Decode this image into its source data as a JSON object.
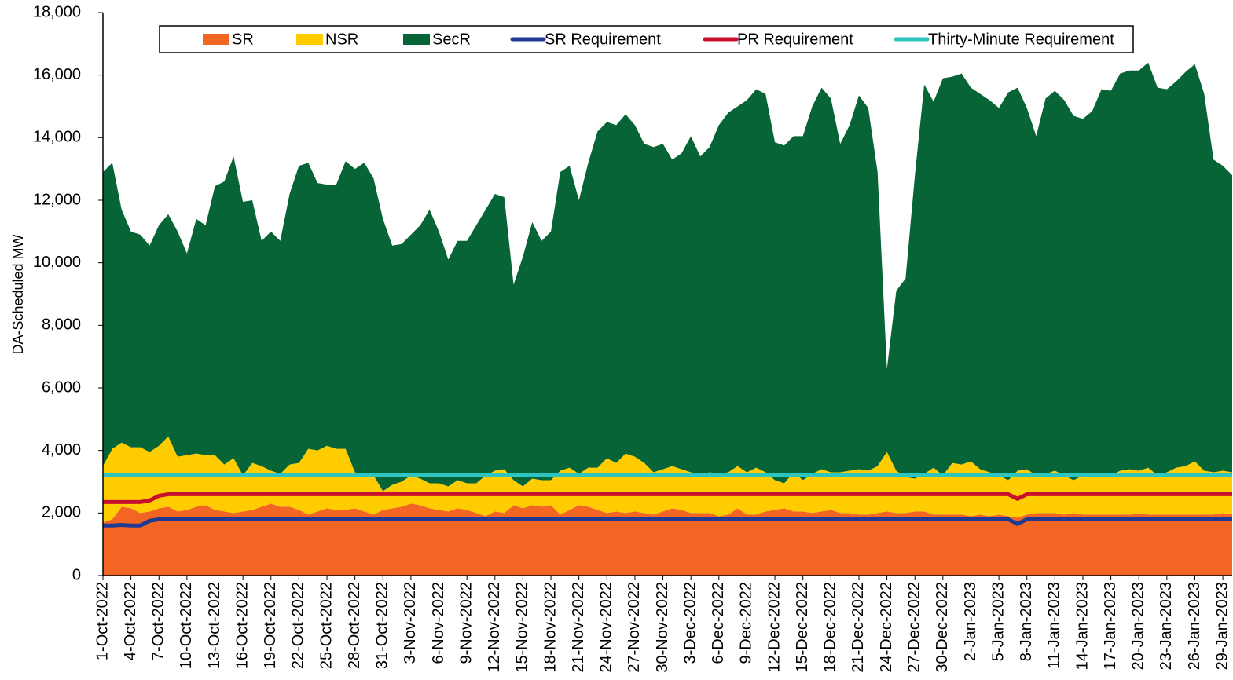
{
  "chart_data": {
    "type": "stacked-area",
    "y_label": "DA-Scheduled MW",
    "categories": [
      "1-Oct-2022",
      null,
      null,
      "4-Oct-2022",
      null,
      null,
      "7-Oct-2022",
      null,
      null,
      "10-Oct-2022",
      null,
      null,
      "13-Oct-2022",
      null,
      null,
      "16-Oct-2022",
      null,
      null,
      "19-Oct-2022",
      null,
      null,
      "22-Oct-2022",
      null,
      null,
      "25-Oct-2022",
      null,
      null,
      "28-Oct-2022",
      null,
      null,
      "31-Oct-2022",
      null,
      null,
      "3-Nov-2022",
      null,
      null,
      "6-Nov-2022",
      null,
      null,
      "9-Nov-2022",
      null,
      null,
      "12-Nov-2022",
      null,
      null,
      "15-Nov-2022",
      null,
      null,
      "18-Nov-2022",
      null,
      null,
      "21-Nov-2022",
      null,
      null,
      "24-Nov-2022",
      null,
      null,
      "27-Nov-2022",
      null,
      null,
      "30-Nov-2022",
      null,
      null,
      "3-Dec-2022",
      null,
      null,
      "6-Dec-2022",
      null,
      null,
      "9-Dec-2022",
      null,
      null,
      "12-Dec-2022",
      null,
      null,
      "15-Dec-2022",
      null,
      null,
      "18-Dec-2022",
      null,
      null,
      "21-Dec-2022",
      null,
      null,
      "24-Dec-2022",
      null,
      null,
      "27-Dec-2022",
      null,
      null,
      "30-Dec-2022",
      null,
      null,
      "2-Jan-2023",
      null,
      null,
      "5-Jan-2023",
      null,
      null,
      "8-Jan-2023",
      null,
      null,
      "11-Jan-2023",
      null,
      null,
      "14-Jan-2023",
      null,
      null,
      "17-Jan-2023",
      null,
      null,
      "20-Jan-2023",
      null,
      null,
      "23-Jan-2023",
      null,
      null,
      "26-Jan-2023",
      null,
      null,
      "29-Jan-2023",
      null
    ],
    "series": [
      {
        "name": "SR",
        "color": "#f26522",
        "values": [
          1700,
          1800,
          2200,
          2150,
          2000,
          2050,
          2150,
          2200,
          2050,
          2100,
          2200,
          2250,
          2100,
          2050,
          2000,
          2050,
          2100,
          2200,
          2300,
          2200,
          2200,
          2100,
          1950,
          2050,
          2150,
          2100,
          2100,
          2150,
          2050,
          1950,
          2100,
          2150,
          2200,
          2300,
          2250,
          2150,
          2100,
          2050,
          2150,
          2100,
          2000,
          1900,
          2050,
          2000,
          2250,
          2150,
          2250,
          2200,
          2250,
          1950,
          2100,
          2250,
          2200,
          2100,
          2000,
          2050,
          2000,
          2050,
          2000,
          1950,
          2050,
          2150,
          2100,
          2000,
          2000,
          2000,
          1900,
          1950,
          2150,
          1950,
          1950,
          2050,
          2100,
          2150,
          2050,
          2050,
          2000,
          2050,
          2100,
          2000,
          2000,
          1950,
          1950,
          2000,
          2050,
          2000,
          2000,
          2050,
          2050,
          1950,
          1950,
          1950,
          1950,
          1900,
          1950,
          1900,
          1950,
          1900,
          1850,
          1950,
          2000,
          2000,
          2000,
          1950,
          2000,
          1950,
          1950,
          1950,
          1950,
          1950,
          1950,
          2000,
          1950,
          1950,
          1950,
          1950,
          1950,
          1950,
          1950,
          1950,
          2000,
          1950
        ]
      },
      {
        "name": "NSR",
        "color": "#ffcc00",
        "values": [
          1800,
          2250,
          2050,
          1950,
          2100,
          1900,
          2000,
          2250,
          1750,
          1750,
          1700,
          1600,
          1750,
          1500,
          1750,
          1150,
          1500,
          1300,
          1050,
          1050,
          1350,
          1500,
          2100,
          1950,
          2000,
          1950,
          1950,
          1150,
          1150,
          1250,
          600,
          750,
          800,
          900,
          850,
          800,
          850,
          800,
          900,
          850,
          950,
          1300,
          1300,
          1400,
          800,
          700,
          850,
          850,
          800,
          1400,
          1350,
          1000,
          1250,
          1350,
          1750,
          1550,
          1900,
          1750,
          1600,
          1350,
          1350,
          1350,
          1300,
          1300,
          1200,
          1300,
          1350,
          1350,
          1350,
          1350,
          1500,
          1250,
          950,
          800,
          1250,
          1000,
          1250,
          1350,
          1200,
          1300,
          1350,
          1450,
          1400,
          1500,
          1900,
          1350,
          1150,
          1050,
          1200,
          1500,
          1250,
          1650,
          1600,
          1750,
          1450,
          1400,
          1250,
          1150,
          1500,
          1450,
          1200,
          1250,
          1350,
          1250,
          1050,
          1250,
          1300,
          1250,
          1250,
          1400,
          1450,
          1350,
          1500,
          1250,
          1350,
          1500,
          1550,
          1700,
          1400,
          1350,
          1350,
          1350
        ]
      },
      {
        "name": "SecR",
        "color": "#076436",
        "values": [
          9400,
          9150,
          7450,
          6900,
          6800,
          6600,
          7050,
          7100,
          7200,
          6450,
          7500,
          7350,
          8600,
          9050,
          9650,
          8750,
          8400,
          7200,
          7650,
          7450,
          8650,
          9500,
          9150,
          8550,
          8350,
          8450,
          9200,
          9700,
          10000,
          9500,
          8700,
          7650,
          7600,
          7700,
          8100,
          8750,
          8050,
          7250,
          7650,
          7750,
          8250,
          8500,
          8850,
          8700,
          6250,
          7350,
          8200,
          7650,
          7950,
          9550,
          9650,
          8750,
          9750,
          10750,
          10750,
          10800,
          10850,
          10600,
          10200,
          10400,
          10400,
          9800,
          10100,
          10750,
          10200,
          10400,
          11150,
          11500,
          11500,
          11900,
          12100,
          12100,
          10800,
          10800,
          10750,
          11000,
          11750,
          12200,
          11950,
          10500,
          11050,
          11950,
          11600,
          9400,
          2650,
          5750,
          6350,
          9700,
          12450,
          11700,
          12700,
          12350,
          12500,
          11950,
          12000,
          11900,
          11750,
          12400,
          12250,
          11550,
          10850,
          12000,
          12150,
          12000,
          11650,
          11400,
          11600,
          12350,
          12300,
          12700,
          12750,
          12800,
          12950,
          12400,
          12250,
          12350,
          12600,
          12700,
          12050,
          10000,
          9750,
          9500
        ]
      }
    ],
    "lines": [
      {
        "name": "SR Requirement",
        "color": "#1f3a93",
        "values": [
          1600,
          1600,
          1620,
          1600,
          1600,
          1750,
          1800,
          1800,
          1800,
          1800,
          1800,
          1800,
          1800,
          1800,
          1800,
          1800,
          1800,
          1800,
          1800,
          1800,
          1800,
          1800,
          1800,
          1800,
          1800,
          1800,
          1800,
          1800,
          1800,
          1800,
          1800,
          1800,
          1800,
          1800,
          1800,
          1800,
          1800,
          1800,
          1800,
          1800,
          1800,
          1800,
          1800,
          1800,
          1800,
          1800,
          1800,
          1800,
          1800,
          1800,
          1800,
          1800,
          1800,
          1800,
          1800,
          1800,
          1800,
          1800,
          1800,
          1800,
          1800,
          1800,
          1800,
          1800,
          1800,
          1800,
          1800,
          1800,
          1800,
          1800,
          1800,
          1800,
          1800,
          1800,
          1800,
          1800,
          1800,
          1800,
          1800,
          1800,
          1800,
          1800,
          1800,
          1800,
          1800,
          1800,
          1800,
          1800,
          1800,
          1800,
          1800,
          1800,
          1800,
          1800,
          1800,
          1800,
          1800,
          1800,
          1650,
          1800,
          1800,
          1800,
          1800,
          1800,
          1800,
          1800,
          1800,
          1800,
          1800,
          1800,
          1800,
          1800,
          1800,
          1800,
          1800,
          1800,
          1800,
          1800,
          1800,
          1800,
          1800,
          1800
        ]
      },
      {
        "name": "PR Requirement",
        "color": "#c8102e",
        "values": [
          2350,
          2350,
          2350,
          2350,
          2350,
          2400,
          2550,
          2600,
          2600,
          2600,
          2600,
          2600,
          2600,
          2600,
          2600,
          2600,
          2600,
          2600,
          2600,
          2600,
          2600,
          2600,
          2600,
          2600,
          2600,
          2600,
          2600,
          2600,
          2600,
          2600,
          2600,
          2600,
          2600,
          2600,
          2600,
          2600,
          2600,
          2600,
          2600,
          2600,
          2600,
          2600,
          2600,
          2600,
          2600,
          2600,
          2600,
          2600,
          2600,
          2600,
          2600,
          2600,
          2600,
          2600,
          2600,
          2600,
          2600,
          2600,
          2600,
          2600,
          2600,
          2600,
          2600,
          2600,
          2600,
          2600,
          2600,
          2600,
          2600,
          2600,
          2600,
          2600,
          2600,
          2600,
          2600,
          2600,
          2600,
          2600,
          2600,
          2600,
          2600,
          2600,
          2600,
          2600,
          2600,
          2600,
          2600,
          2600,
          2600,
          2600,
          2600,
          2600,
          2600,
          2600,
          2600,
          2600,
          2600,
          2600,
          2450,
          2600,
          2600,
          2600,
          2600,
          2600,
          2600,
          2600,
          2600,
          2600,
          2600,
          2600,
          2600,
          2600,
          2600,
          2600,
          2600,
          2600,
          2600,
          2600,
          2600,
          2600,
          2600,
          2600
        ]
      },
      {
        "name": "Thirty-Minute Requirement",
        "color": "#2ec4c0",
        "values": [
          3200,
          3200,
          3200,
          3200,
          3200,
          3200,
          3200,
          3200,
          3200,
          3200,
          3200,
          3200,
          3200,
          3200,
          3200,
          3200,
          3200,
          3200,
          3200,
          3200,
          3200,
          3200,
          3200,
          3200,
          3200,
          3200,
          3200,
          3200,
          3200,
          3200,
          3200,
          3200,
          3200,
          3200,
          3200,
          3200,
          3200,
          3200,
          3200,
          3200,
          3200,
          3200,
          3200,
          3200,
          3200,
          3200,
          3200,
          3200,
          3200,
          3200,
          3200,
          3200,
          3200,
          3200,
          3200,
          3200,
          3200,
          3200,
          3200,
          3200,
          3200,
          3200,
          3200,
          3200,
          3200,
          3200,
          3200,
          3200,
          3200,
          3200,
          3200,
          3200,
          3200,
          3200,
          3200,
          3200,
          3200,
          3200,
          3200,
          3200,
          3200,
          3200,
          3200,
          3200,
          3200,
          3200,
          3200,
          3200,
          3200,
          3200,
          3200,
          3200,
          3200,
          3200,
          3200,
          3200,
          3200,
          3200,
          3200,
          3200,
          3200,
          3200,
          3200,
          3200,
          3200,
          3200,
          3200,
          3200,
          3200,
          3200,
          3200,
          3200,
          3200,
          3200,
          3200,
          3200,
          3200,
          3200,
          3200,
          3200,
          3200,
          3200
        ]
      }
    ],
    "ylim": [
      0,
      18000
    ],
    "yticks": [
      0,
      {
        "value": 2000,
        "label": "2,000"
      },
      {
        "value": 4000,
        "label": "4,000"
      },
      {
        "value": 6000,
        "label": "6,000"
      },
      {
        "value": 8000,
        "label": "8,000"
      },
      {
        "value": 10000,
        "label": "10,000"
      },
      {
        "value": 12000,
        "label": "12,000"
      },
      {
        "value": 14000,
        "label": "14,000"
      },
      {
        "value": 16000,
        "label": "16,000"
      },
      {
        "value": 18000,
        "label": "18,000"
      }
    ],
    "legend": "top"
  }
}
